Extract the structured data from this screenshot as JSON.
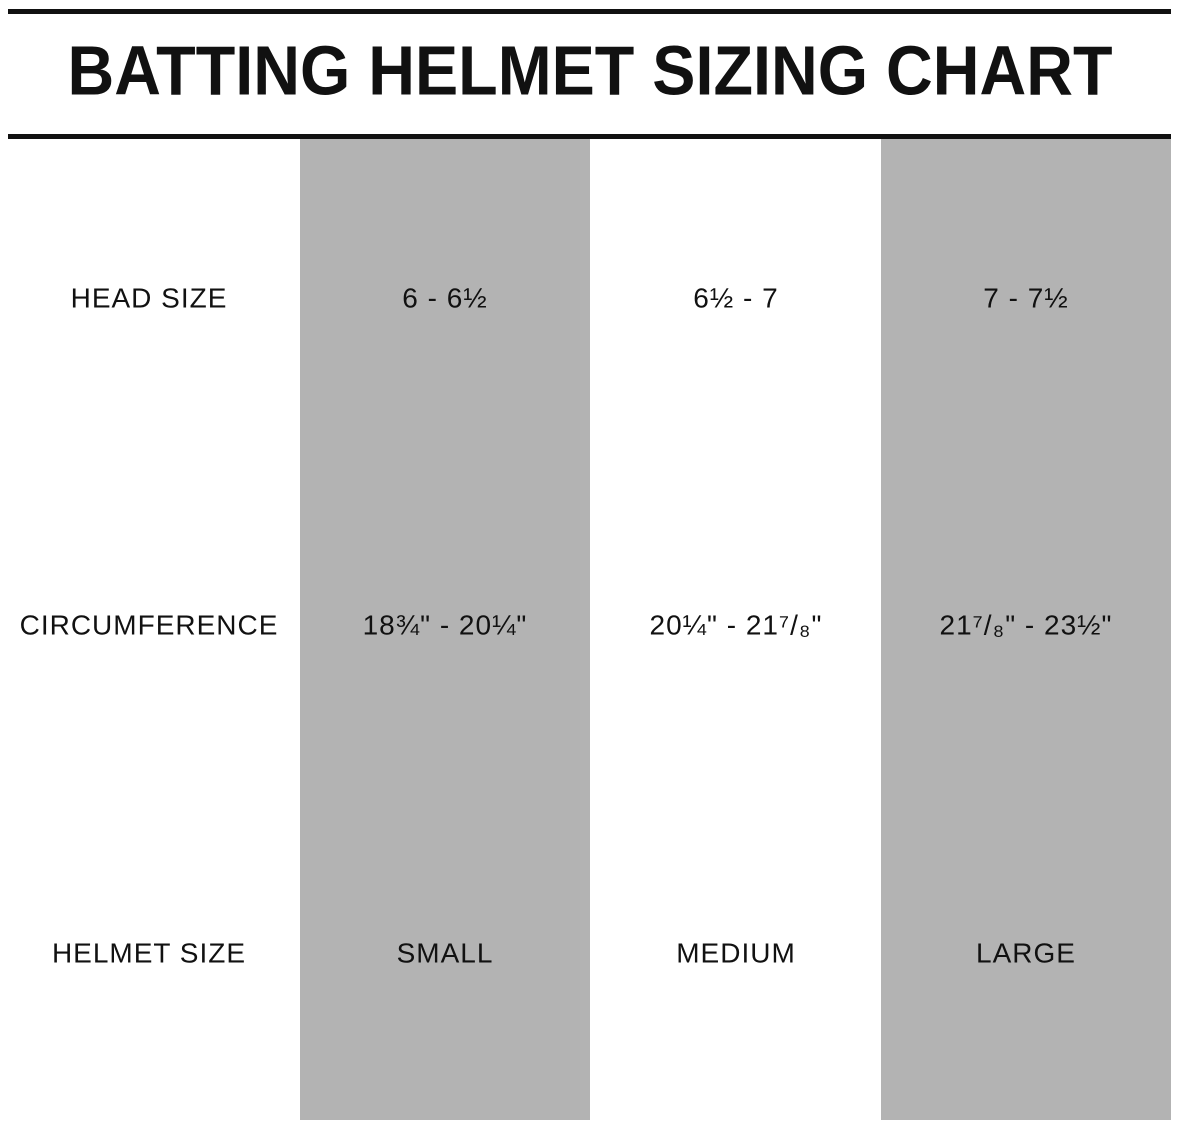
{
  "title": "BATTING HELMET SIZING CHART",
  "table": {
    "rows": [
      [
        "HEAD SIZE",
        "6 - 6½",
        "6½ - 7",
        "7 - 7½"
      ],
      [
        "CIRCUMFERENCE",
        "18¾\" - 20¼\"",
        "20¼\" - 21⁷/₈\"",
        "21⁷/₈\" - 23½\""
      ],
      [
        "HELMET SIZE",
        "SMALL",
        "MEDIUM",
        "LARGE"
      ]
    ]
  }
}
